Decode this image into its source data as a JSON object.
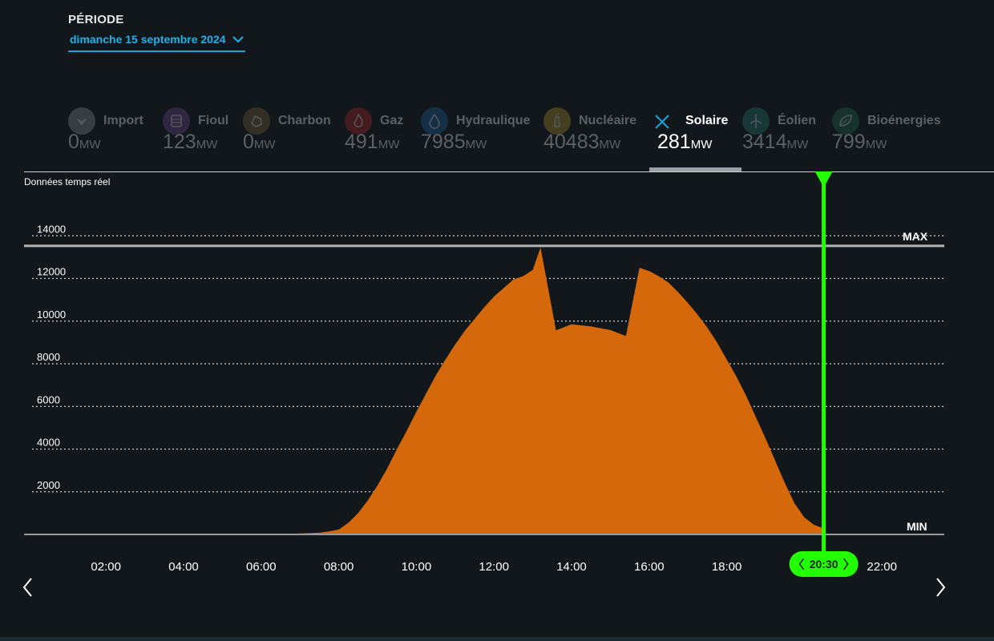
{
  "period": {
    "label": "PÉRIODE",
    "value": "dimanche 15 septembre 2024"
  },
  "realtime_label": "Données temps réel",
  "unit": "MW",
  "tabs": [
    {
      "name": "Import",
      "value": "0",
      "icon": "import-icon",
      "color": "#9aa0a6",
      "active": false
    },
    {
      "name": "Fioul",
      "value": "123",
      "icon": "barrel-icon",
      "color": "#7b4fa0",
      "active": false
    },
    {
      "name": "Charbon",
      "value": "0",
      "icon": "coal-icon",
      "color": "#8a6d3b",
      "active": false
    },
    {
      "name": "Gaz",
      "value": "491",
      "icon": "flame-icon",
      "color": "#c62828",
      "active": false
    },
    {
      "name": "Hydraulique",
      "value": "7985",
      "icon": "water-drop-icon",
      "color": "#1e6fb5",
      "active": false
    },
    {
      "name": "Nucléaire",
      "value": "40483",
      "icon": "nuclear-icon",
      "color": "#c9a227",
      "active": false
    },
    {
      "name": "Solaire",
      "value": "281",
      "icon": "close-icon",
      "color": "#1aa3d9",
      "active": true
    },
    {
      "name": "Éolien",
      "value": "3414",
      "icon": "wind-turbine-icon",
      "color": "#2a8a7f",
      "active": false
    },
    {
      "name": "Bioénergies",
      "value": "799",
      "icon": "leaf-icon",
      "color": "#1f7a55",
      "active": false
    }
  ],
  "chart_data": {
    "type": "area",
    "series": [
      {
        "name": "Solaire",
        "color": "#d4680b",
        "values": [
          [
            6.75,
            30
          ],
          [
            7.5,
            80
          ],
          [
            7.75,
            140
          ],
          [
            8.0,
            230
          ],
          [
            8.25,
            550
          ],
          [
            8.5,
            1000
          ],
          [
            8.75,
            1600
          ],
          [
            9.0,
            2300
          ],
          [
            9.25,
            3100
          ],
          [
            9.5,
            4000
          ],
          [
            9.75,
            4850
          ],
          [
            10.0,
            5750
          ],
          [
            10.25,
            6600
          ],
          [
            10.5,
            7450
          ],
          [
            10.75,
            8200
          ],
          [
            11.0,
            8900
          ],
          [
            11.25,
            9550
          ],
          [
            11.5,
            10100
          ],
          [
            11.75,
            10650
          ],
          [
            12.0,
            11150
          ],
          [
            12.25,
            11550
          ],
          [
            12.5,
            11950
          ],
          [
            12.75,
            12100
          ],
          [
            13.0,
            12400
          ],
          [
            13.2,
            13450
          ],
          [
            13.6,
            9570
          ],
          [
            14.0,
            9850
          ],
          [
            14.5,
            9750
          ],
          [
            15.0,
            9580
          ],
          [
            15.4,
            9300
          ],
          [
            15.75,
            12500
          ],
          [
            16.0,
            12350
          ],
          [
            16.25,
            12100
          ],
          [
            16.5,
            11800
          ],
          [
            16.75,
            11350
          ],
          [
            17.0,
            10850
          ],
          [
            17.25,
            10300
          ],
          [
            17.5,
            9700
          ],
          [
            17.75,
            9000
          ],
          [
            18.0,
            8200
          ],
          [
            18.25,
            7400
          ],
          [
            18.5,
            6500
          ],
          [
            18.75,
            5500
          ],
          [
            19.0,
            4500
          ],
          [
            19.25,
            3450
          ],
          [
            19.5,
            2400
          ],
          [
            19.75,
            1450
          ],
          [
            20.0,
            800
          ],
          [
            20.25,
            450
          ],
          [
            20.5,
            281
          ]
        ]
      }
    ],
    "x_range": [
      0,
      24
    ],
    "y_range": [
      0,
      14000
    ],
    "y_ticks": [
      2000,
      4000,
      6000,
      8000,
      10000,
      12000,
      14000
    ],
    "x_ticks": [
      "02:00",
      "04:00",
      "06:00",
      "08:00",
      "10:00",
      "12:00",
      "14:00",
      "16:00",
      "18:00",
      "20:30",
      "22:00"
    ],
    "max_value": 13450,
    "max_label": "MAX",
    "min_label": "MIN",
    "cursor_time": "20:30",
    "cursor_hour": 20.5,
    "cursor_color": "#22ff00"
  }
}
